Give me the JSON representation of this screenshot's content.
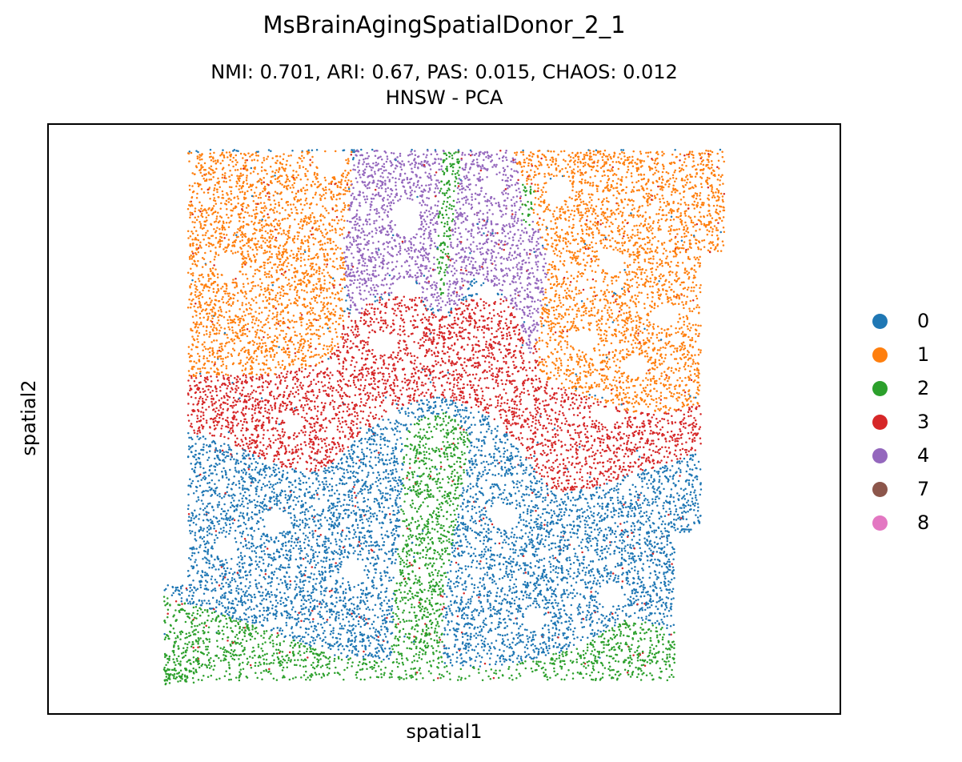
{
  "chart_data": {
    "type": "scatter",
    "title": "MsBrainAgingSpatialDonor_2_1",
    "subtitle_lines": [
      "NMI: 0.701,  ARI: 0.67,  PAS: 0.015,  CHAOS: 0.012",
      "HNSW - PCA"
    ],
    "xlabel": "spatial1",
    "ylabel": "spatial2",
    "xticks": false,
    "yticks": false,
    "grid": false,
    "legend_position": "right",
    "legend": [
      {
        "label": "0",
        "color": "#1f77b4"
      },
      {
        "label": "1",
        "color": "#ff7f0e"
      },
      {
        "label": "2",
        "color": "#2ca02c"
      },
      {
        "label": "3",
        "color": "#d62728"
      },
      {
        "label": "4",
        "color": "#9467bd"
      },
      {
        "label": "7",
        "color": "#8c564b"
      },
      {
        "label": "8",
        "color": "#e377c2"
      }
    ]
  }
}
